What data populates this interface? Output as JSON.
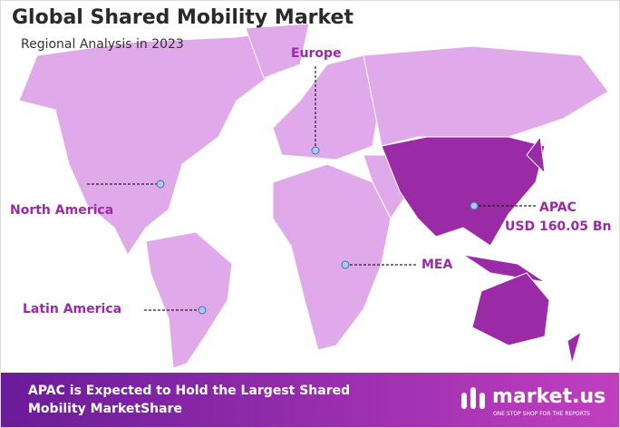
{
  "header": {
    "title": "Global Shared Mobility Market",
    "subtitle": "Regional Analysis in 2023"
  },
  "regions": [
    {
      "label": "Europe"
    },
    {
      "label": "North America"
    },
    {
      "label": "Latin America"
    },
    {
      "label": "MEA"
    },
    {
      "label": "APAC",
      "value": "USD 160.05 Bn"
    }
  ],
  "footer": {
    "text_lines": [
      "APAC is Expected to Hold the Largest Shared",
      "Mobility MarketShare"
    ],
    "logo": "market.us",
    "tagline": "ONE STOP SHOP FOR THE REPORTS"
  }
}
